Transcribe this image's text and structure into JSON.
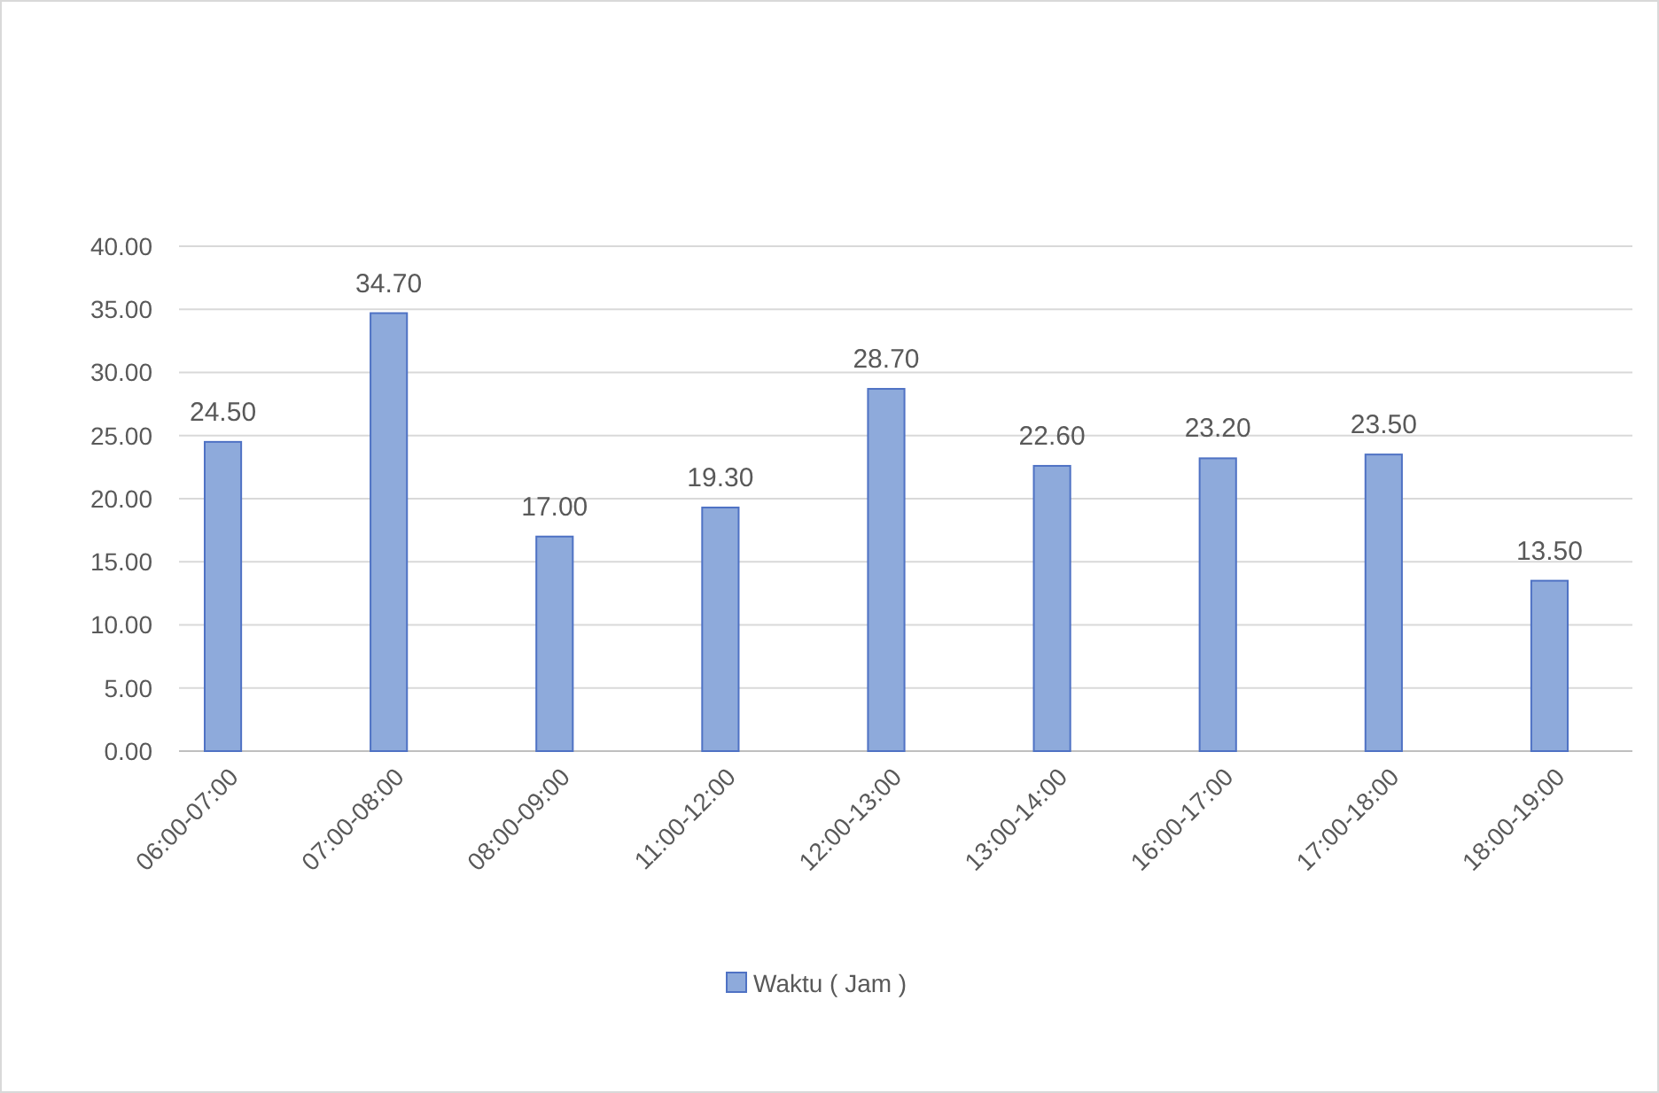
{
  "chart_data": {
    "type": "bar",
    "categories": [
      "06:00-07:00",
      "07:00-08:00",
      "08:00-09:00",
      "11:00-12:00",
      "12:00-13:00",
      "13:00-14:00",
      "16:00-17:00",
      "17:00-18:00",
      "18:00-19:00"
    ],
    "series": [
      {
        "name": "Waktu ( Jam )",
        "color": "#8eaadb",
        "values": [
          24.5,
          34.7,
          17.0,
          19.3,
          28.7,
          22.6,
          23.2,
          23.5,
          13.5
        ]
      }
    ],
    "value_labels": [
      "24.50",
      "34.70",
      "17.00",
      "19.30",
      "28.70",
      "22.60",
      "23.20",
      "23.50",
      "13.50"
    ],
    "ylim": [
      0,
      40
    ],
    "yticks": [
      {
        "value": 0,
        "label": "0.00"
      },
      {
        "value": 5,
        "label": "5.00"
      },
      {
        "value": 10,
        "label": "10.00"
      },
      {
        "value": 15,
        "label": "15.00"
      },
      {
        "value": 20,
        "label": "20.00"
      },
      {
        "value": 25,
        "label": "25.00"
      },
      {
        "value": 30,
        "label": "30.00"
      },
      {
        "value": 35,
        "label": "35.00"
      },
      {
        "value": 40,
        "label": "40.00"
      }
    ],
    "grid": "y",
    "legend": "bottom"
  }
}
